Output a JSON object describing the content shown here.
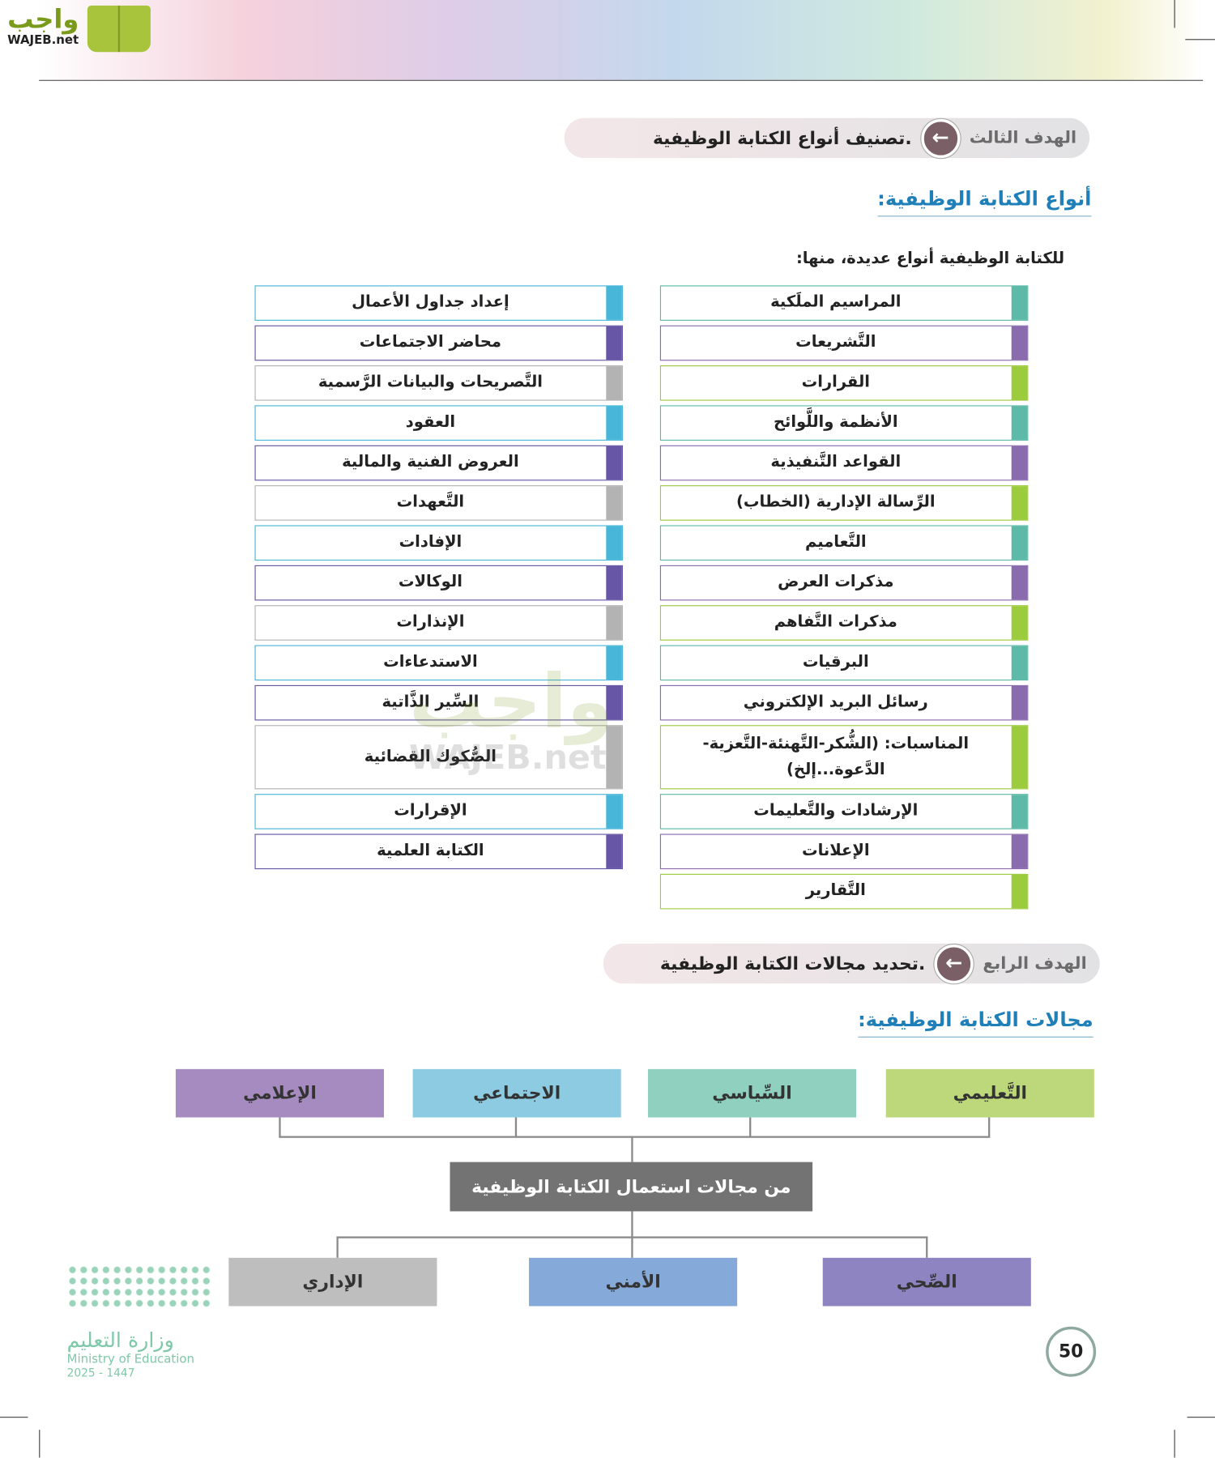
{
  "logo": {
    "text_ar": "واجب",
    "text_en": "WAJEB.net"
  },
  "goal3": {
    "label": "الهدف الثالث",
    "text": "تصنيف أنواع الكتابة الوظيفية."
  },
  "section1": {
    "title": "أنواع الكتابة الوظيفية:",
    "intro": "للكتابة الوظيفية أنواع عديدة، منها:"
  },
  "colors": {
    "teal": "#5dbaa9",
    "purple": "#8a6cae",
    "green": "#9ccb3d",
    "cyan": "#48b6d8",
    "indigo": "#6656a5",
    "gray": "#b3b3b3"
  },
  "right_items": [
    {
      "text": "المراسيم الملَكية",
      "color": "teal"
    },
    {
      "text": "التَّشريعات",
      "color": "purple"
    },
    {
      "text": "القرارات",
      "color": "green"
    },
    {
      "text": "الأنظمة واللَّوائح",
      "color": "teal"
    },
    {
      "text": "القواعد التَّنفيذية",
      "color": "purple"
    },
    {
      "text": "الرِّسالة الإدارية (الخطاب)",
      "color": "green"
    },
    {
      "text": "التَّعاميم",
      "color": "teal"
    },
    {
      "text": "مذكرات العرض",
      "color": "purple"
    },
    {
      "text": "مذكرات التَّفاهم",
      "color": "green"
    },
    {
      "text": "البرقيات",
      "color": "teal"
    },
    {
      "text": "رسائل البريد الإلكتروني",
      "color": "purple"
    },
    {
      "text": "المناسبات: (الشُّكر-التَّهنئة-التَّعزية-الدَّعوة...إلخ)",
      "color": "green",
      "tall": true
    },
    {
      "text": "الإرشادات والتَّعليمات",
      "color": "teal"
    },
    {
      "text": "الإعلانات",
      "color": "purple"
    },
    {
      "text": "التَّقارير",
      "color": "green"
    }
  ],
  "left_items": [
    {
      "text": "إعداد جداول الأعمال",
      "color": "cyan"
    },
    {
      "text": "محاضر الاجتماعات",
      "color": "indigo"
    },
    {
      "text": "التَّصريحات والبيانات الرَّسمية",
      "color": "gray"
    },
    {
      "text": "العقود",
      "color": "cyan"
    },
    {
      "text": "العروض الفنية والمالية",
      "color": "indigo"
    },
    {
      "text": "التَّعهدات",
      "color": "gray"
    },
    {
      "text": "الإفادات",
      "color": "cyan"
    },
    {
      "text": "الوكالات",
      "color": "indigo"
    },
    {
      "text": "الإنذارات",
      "color": "gray"
    },
    {
      "text": "الاستدعاءات",
      "color": "cyan"
    },
    {
      "text": "السِّير الذَّاتية",
      "color": "indigo"
    },
    {
      "text": "الصُّكوك القضائية",
      "color": "gray",
      "tall": true
    },
    {
      "text": "الإقرارات",
      "color": "cyan"
    },
    {
      "text": "الكتابة العلمية",
      "color": "indigo"
    }
  ],
  "goal4": {
    "label": "الهدف الرابع",
    "text": "تحديد مجالات الكتابة الوظيفية."
  },
  "section2": {
    "title": "مجالات الكتابة الوظيفية:"
  },
  "diagram": {
    "center": "من مجالات استعمال الكتابة الوظيفية",
    "top": [
      {
        "text": "التَّعليمي",
        "color": "#bcd87b"
      },
      {
        "text": "السِّياسي",
        "color": "#8fd1be"
      },
      {
        "text": "الاجتماعي",
        "color": "#8ccbe1"
      },
      {
        "text": "الإعلامي",
        "color": "#a68bc1"
      }
    ],
    "bottom": [
      {
        "text": "الصِّحي",
        "color": "#8e84c1"
      },
      {
        "text": "الأمني",
        "color": "#85a9d9"
      },
      {
        "text": "الإداري",
        "color": "#bebebe"
      }
    ]
  },
  "ministry": {
    "name_ar": "وزارة التعليم",
    "name_en": "Ministry of Education",
    "year": "2025 - 1447"
  },
  "page_number": "50"
}
